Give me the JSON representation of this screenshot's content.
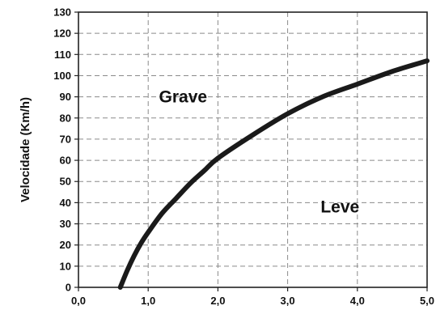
{
  "chart_data": {
    "type": "line",
    "title": "",
    "xlabel": "",
    "ylabel": "Velocidade (Km/h)",
    "xlim": [
      0,
      5
    ],
    "ylim": [
      0,
      130
    ],
    "grid": true,
    "x_ticks": [
      "0,0",
      "1,0",
      "2,0",
      "3,0",
      "4,0",
      "5,0"
    ],
    "y_ticks": [
      "0",
      "10",
      "20",
      "30",
      "40",
      "50",
      "60",
      "70",
      "80",
      "90",
      "100",
      "110",
      "120",
      "130"
    ],
    "series": [
      {
        "x": [
          0.6,
          0.7,
          0.8,
          0.9,
          1.0,
          1.2,
          1.4,
          1.6,
          1.8,
          2.0,
          2.5,
          3.0,
          3.5,
          4.0,
          4.5,
          5.0
        ],
        "y": [
          0,
          8,
          15,
          21,
          26,
          35,
          42,
          49,
          55,
          61,
          72,
          82,
          90,
          96,
          102,
          107
        ]
      }
    ],
    "annotations": [
      {
        "text": "Grave",
        "x": 1.5,
        "y": 90
      },
      {
        "text": "Leve",
        "x": 3.75,
        "y": 38
      }
    ]
  }
}
